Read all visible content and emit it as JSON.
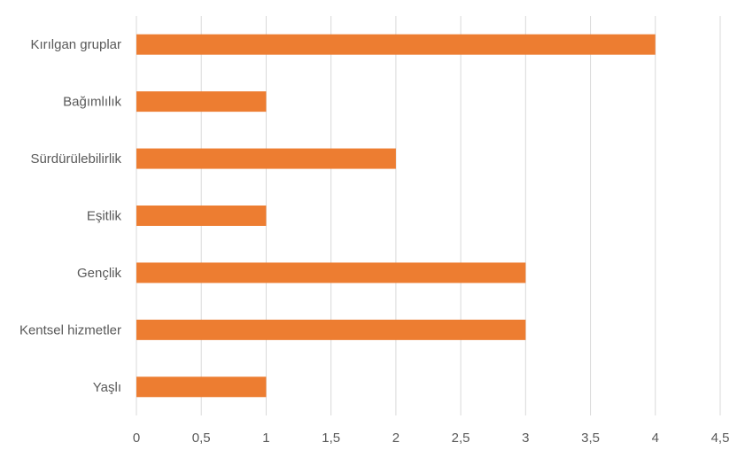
{
  "chart_data": {
    "type": "bar",
    "orientation": "horizontal",
    "categories": [
      "Kırılgan gruplar",
      "Bağımlılık",
      "Sürdürülebilirlik",
      "Eşitlik",
      "Gençlik",
      "Kentsel hizmetler",
      "Yaşlı"
    ],
    "values": [
      4,
      1,
      2,
      1,
      3,
      3,
      1
    ],
    "x_ticks": [
      "0",
      "0,5",
      "1",
      "1,5",
      "2",
      "2,5",
      "3",
      "3,5",
      "4",
      "4,5"
    ],
    "xlim": [
      0,
      4.5
    ],
    "grid": true,
    "legend": "none",
    "bar_color": "#ed7d31"
  }
}
